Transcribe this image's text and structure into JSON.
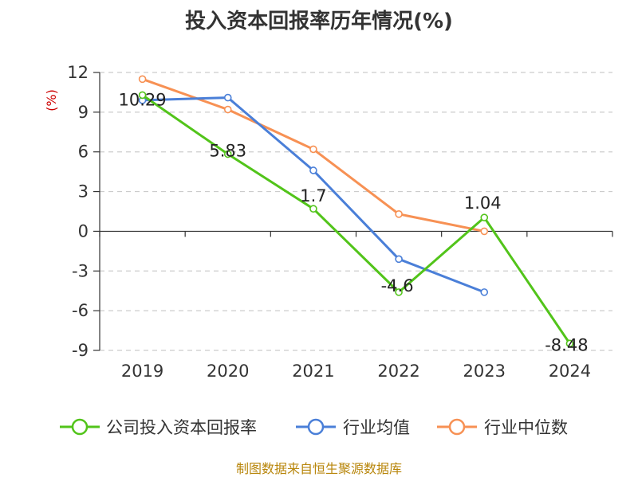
{
  "chart_data": {
    "type": "line",
    "title": "投入资本回报率历年情况(%)",
    "unit_label": "(%)",
    "x": [
      "2019",
      "2020",
      "2021",
      "2022",
      "2023",
      "2024"
    ],
    "ylim": [
      -9,
      12
    ],
    "yticks": [
      12,
      9,
      6,
      3,
      0,
      -3,
      -6,
      -9
    ],
    "grid": true,
    "legend_position": "bottom",
    "series": [
      {
        "name": "公司投入资本回报率",
        "color": "#52c41a",
        "values": [
          10.29,
          5.83,
          1.7,
          -4.6,
          1.04,
          -8.48
        ],
        "labels": [
          "10.29",
          "5.83",
          "1.7",
          "-4.6",
          "1.04",
          "-8.48"
        ]
      },
      {
        "name": "行业均值",
        "color": "#4a7fd8",
        "values": [
          9.9,
          10.1,
          4.6,
          -2.1,
          -4.6,
          null
        ]
      },
      {
        "name": "行业中位数",
        "color": "#f79154",
        "values": [
          11.5,
          9.2,
          6.2,
          1.3,
          0.0,
          null
        ]
      }
    ],
    "source": "制图数据来自恒生聚源数据库"
  }
}
